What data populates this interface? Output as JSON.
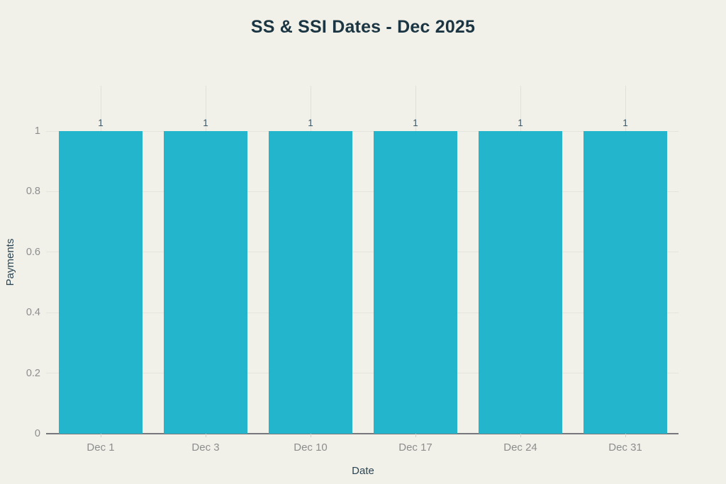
{
  "chart_data": {
    "type": "bar",
    "title": "SS & SSI Dates - Dec 2025",
    "xlabel": "Date",
    "ylabel": "Payments",
    "categories": [
      "Dec 1",
      "Dec 3",
      "Dec 10",
      "Dec 17",
      "Dec 24",
      "Dec 31"
    ],
    "values": [
      1,
      1,
      1,
      1,
      1,
      1
    ],
    "value_labels": [
      "1",
      "1",
      "1",
      "1",
      "1",
      "1"
    ],
    "ylim": [
      0,
      1
    ],
    "yticks": [
      0,
      0.2,
      0.4,
      0.6,
      0.8,
      1
    ],
    "ytick_labels": [
      "0",
      "0.2",
      "0.4",
      "0.6",
      "0.8",
      "1"
    ],
    "grid": true,
    "legend": false,
    "colors": {
      "background": "#f1f1ea",
      "bar": "#22b5cb",
      "grid": "#e4e4dc",
      "vertical_grid": "#e0e0d8",
      "axis_line": "#77787b",
      "x_tick": "#cfcfc8",
      "tick_text": "#8d8d8d",
      "title_text": "#1b3642",
      "axis_title_text": "#2b4553",
      "value_label_text": "#3c5766"
    }
  }
}
